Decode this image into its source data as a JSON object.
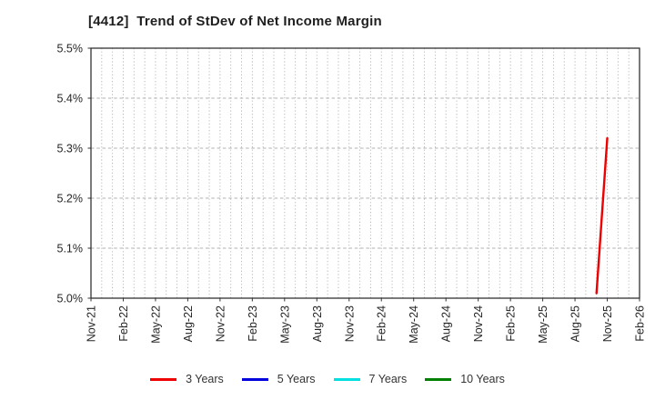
{
  "chart_data": {
    "type": "line",
    "title": "[4412]  Trend of StDev of Net Income Margin",
    "xlabel": "",
    "ylabel": "",
    "ylim": [
      5.0,
      5.5
    ],
    "x_total_months": 51,
    "x_tick_interval_months": 3,
    "x_ticks": [
      {
        "label": "Nov-21",
        "month": 0
      },
      {
        "label": "Feb-22",
        "month": 3
      },
      {
        "label": "May-22",
        "month": 6
      },
      {
        "label": "Aug-22",
        "month": 9
      },
      {
        "label": "Nov-22",
        "month": 12
      },
      {
        "label": "Feb-23",
        "month": 15
      },
      {
        "label": "May-23",
        "month": 18
      },
      {
        "label": "Aug-23",
        "month": 21
      },
      {
        "label": "Nov-23",
        "month": 24
      },
      {
        "label": "Feb-24",
        "month": 27
      },
      {
        "label": "May-24",
        "month": 30
      },
      {
        "label": "Aug-24",
        "month": 33
      },
      {
        "label": "Nov-24",
        "month": 36
      },
      {
        "label": "Feb-25",
        "month": 39
      },
      {
        "label": "May-25",
        "month": 42
      },
      {
        "label": "Aug-25",
        "month": 45
      },
      {
        "label": "Nov-25",
        "month": 48
      },
      {
        "label": "Feb-26",
        "month": 51
      }
    ],
    "y_ticks": [
      {
        "label": "5.0%",
        "value": 5.0
      },
      {
        "label": "5.1%",
        "value": 5.1
      },
      {
        "label": "5.2%",
        "value": 5.2
      },
      {
        "label": "5.3%",
        "value": 5.3
      },
      {
        "label": "5.4%",
        "value": 5.4
      },
      {
        "label": "5.5%",
        "value": 5.5
      }
    ],
    "grid": {
      "vertical": "dotted, every month",
      "horizontal": "dashed, every 0.1%",
      "color": "#b0b0b0"
    },
    "legend_position": "bottom",
    "axis_color": "#333333",
    "tick_label_color": "#262626",
    "series": [
      {
        "name": "3 Years",
        "color": "#ee0000",
        "points": [
          {
            "x": "Oct-25",
            "month": 47,
            "value": 5.01
          },
          {
            "x": "Nov-25",
            "month": 48,
            "value": 5.32
          }
        ]
      },
      {
        "name": "5 Years",
        "color": "#0000dd",
        "points": []
      },
      {
        "name": "7 Years",
        "color": "#00e0e0",
        "points": []
      },
      {
        "name": "10 Years",
        "color": "#008000",
        "points": []
      }
    ]
  }
}
